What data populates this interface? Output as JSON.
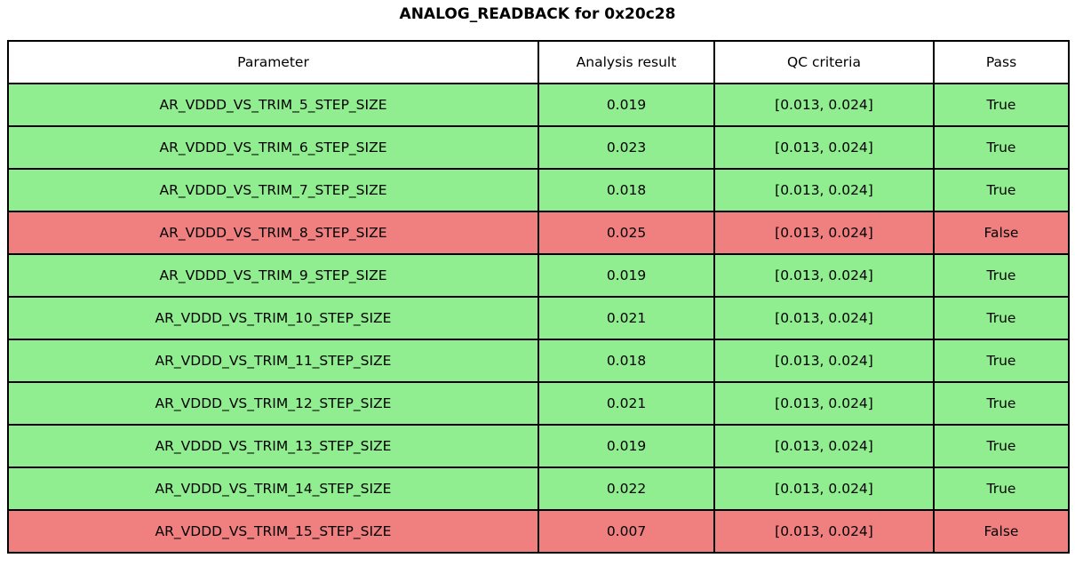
{
  "title": "ANALOG_READBACK for 0x20c28",
  "colors": {
    "pass_row": "#90ee90",
    "fail_row": "#f08080",
    "header_bg": "#ffffff",
    "border": "#000000",
    "text": "#000000"
  },
  "chart_data": {
    "type": "table",
    "title": "ANALOG_READBACK for 0x20c28",
    "columns": [
      "Parameter",
      "Analysis result",
      "QC criteria",
      "Pass"
    ],
    "rows": [
      {
        "parameter": "AR_VDDD_VS_TRIM_5_STEP_SIZE",
        "result": "0.019",
        "qc": "[0.013, 0.024]",
        "pass": "True"
      },
      {
        "parameter": "AR_VDDD_VS_TRIM_6_STEP_SIZE",
        "result": "0.023",
        "qc": "[0.013, 0.024]",
        "pass": "True"
      },
      {
        "parameter": "AR_VDDD_VS_TRIM_7_STEP_SIZE",
        "result": "0.018",
        "qc": "[0.013, 0.024]",
        "pass": "True"
      },
      {
        "parameter": "AR_VDDD_VS_TRIM_8_STEP_SIZE",
        "result": "0.025",
        "qc": "[0.013, 0.024]",
        "pass": "False"
      },
      {
        "parameter": "AR_VDDD_VS_TRIM_9_STEP_SIZE",
        "result": "0.019",
        "qc": "[0.013, 0.024]",
        "pass": "True"
      },
      {
        "parameter": "AR_VDDD_VS_TRIM_10_STEP_SIZE",
        "result": "0.021",
        "qc": "[0.013, 0.024]",
        "pass": "True"
      },
      {
        "parameter": "AR_VDDD_VS_TRIM_11_STEP_SIZE",
        "result": "0.018",
        "qc": "[0.013, 0.024]",
        "pass": "True"
      },
      {
        "parameter": "AR_VDDD_VS_TRIM_12_STEP_SIZE",
        "result": "0.021",
        "qc": "[0.013, 0.024]",
        "pass": "True"
      },
      {
        "parameter": "AR_VDDD_VS_TRIM_13_STEP_SIZE",
        "result": "0.019",
        "qc": "[0.013, 0.024]",
        "pass": "True"
      },
      {
        "parameter": "AR_VDDD_VS_TRIM_14_STEP_SIZE",
        "result": "0.022",
        "qc": "[0.013, 0.024]",
        "pass": "True"
      },
      {
        "parameter": "AR_VDDD_VS_TRIM_15_STEP_SIZE",
        "result": "0.007",
        "qc": "[0.013, 0.024]",
        "pass": "False"
      }
    ]
  }
}
